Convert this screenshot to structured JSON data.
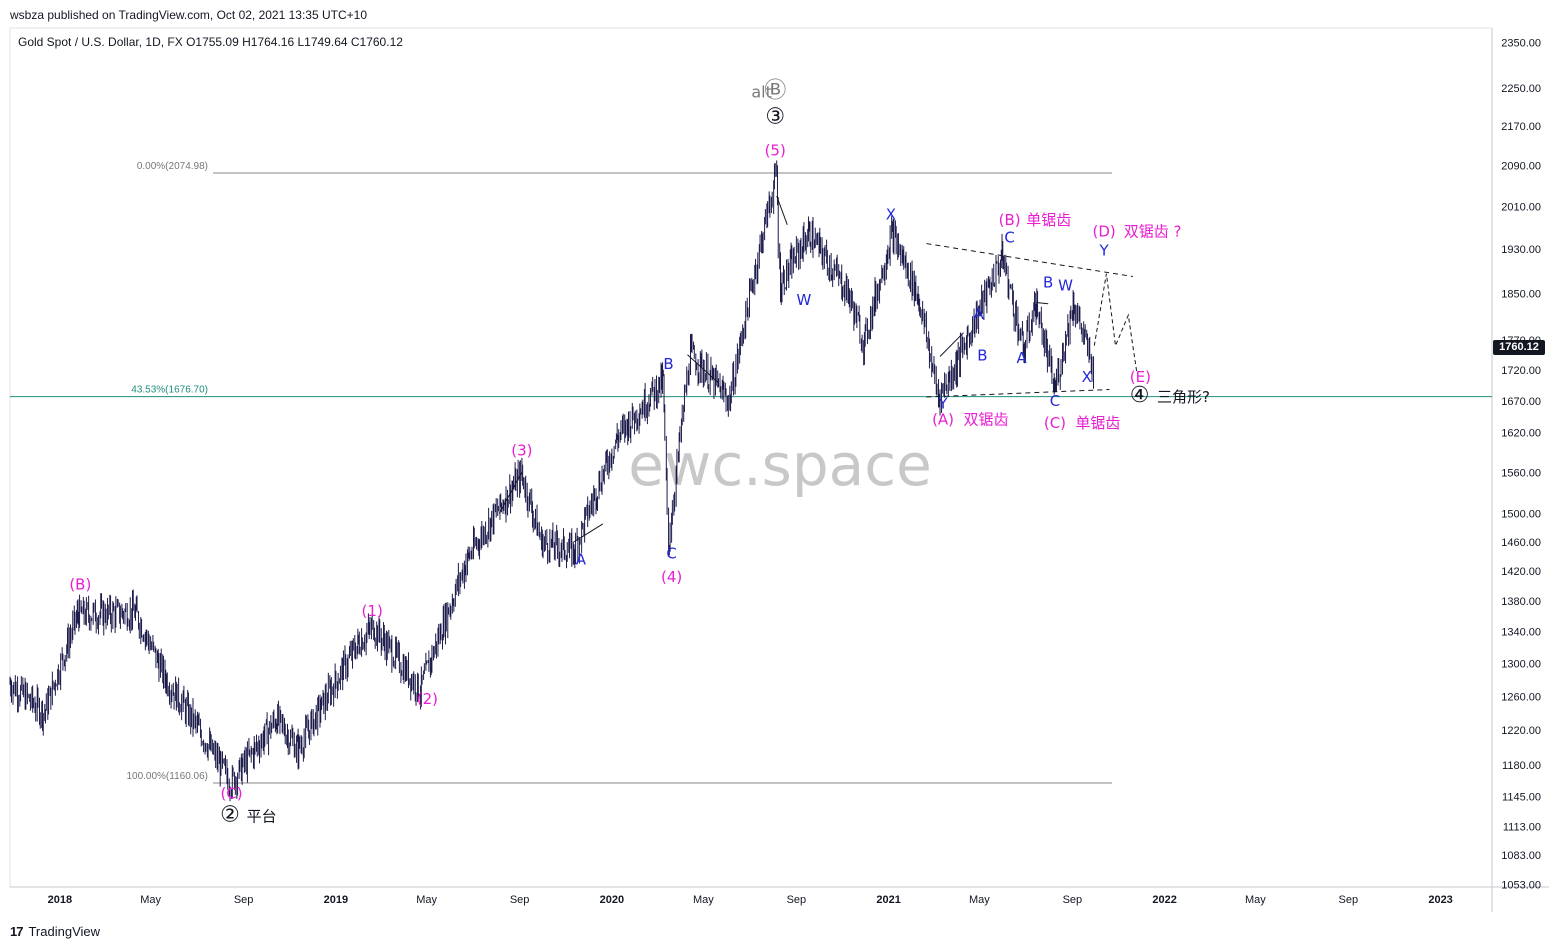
{
  "header": {
    "publisher": "wsbza published on TradingView.com, Oct 02, 2021 13:35 UTC+10",
    "symbol_line": "Gold Spot / U.S. Dollar, 1D, FX  O1755.09  H1764.16  L1749.64  C1760.12"
  },
  "footer": {
    "brand": "TradingView",
    "logo": "17"
  },
  "last_price": "1760.12",
  "watermark": "ewc.space",
  "colors": {
    "candles": "#1b1a4a",
    "magenta": "#e91ed2",
    "blue": "#2329d9",
    "teal": "#1f8f7c",
    "grey": "#7a7a7a",
    "fib": "#777777"
  },
  "chart_data": {
    "type": "candlestick",
    "title": "Gold Spot / U.S. Dollar, 1D, FX",
    "ohlc_last": {
      "open": 1755.09,
      "high": 1764.16,
      "low": 1749.64,
      "close": 1760.12
    },
    "y_axis": {
      "scale": "log",
      "ticks": [
        "2350.00",
        "2250.00",
        "2170.00",
        "2090.00",
        "2010.00",
        "1930.00",
        "1850.00",
        "1770.00",
        "1720.00",
        "1670.00",
        "1620.00",
        "1560.00",
        "1500.00",
        "1460.00",
        "1420.00",
        "1380.00",
        "1340.00",
        "1300.00",
        "1260.00",
        "1220.00",
        "1180.00",
        "1145.00",
        "1113.00",
        "1083.00",
        "1053.00"
      ],
      "ylim": [
        1053,
        2350
      ]
    },
    "x_axis": {
      "ticks": [
        "2018",
        "May",
        "Sep",
        "2019",
        "May",
        "Sep",
        "2020",
        "May",
        "Sep",
        "2021",
        "May",
        "Sep",
        "2022",
        "May",
        "Sep",
        "2023"
      ],
      "tick_dates": [
        "2018-01-01",
        "2018-05-01",
        "2018-09-01",
        "2019-01-01",
        "2019-05-01",
        "2019-09-01",
        "2020-01-01",
        "2020-05-01",
        "2020-09-01",
        "2021-01-01",
        "2021-05-01",
        "2021-09-01",
        "2022-01-01",
        "2022-05-01",
        "2022-09-01",
        "2023-01-01"
      ],
      "xlim": [
        "2017-10-27",
        "2023-03-10"
      ]
    },
    "price_path": [
      [
        "2017-10-27",
        1276
      ],
      [
        "2017-12-12",
        1240
      ],
      [
        "2018-01-25",
        1362
      ],
      [
        "2018-04-11",
        1365
      ],
      [
        "2018-05-21",
        1282
      ],
      [
        "2018-08-16",
        1160
      ],
      [
        "2018-10-15",
        1233
      ],
      [
        "2018-11-12",
        1198
      ],
      [
        "2019-01-31",
        1325
      ],
      [
        "2019-02-20",
        1346
      ],
      [
        "2019-04-23",
        1267
      ],
      [
        "2019-06-25",
        1438
      ],
      [
        "2019-09-04",
        1557
      ],
      [
        "2019-09-30",
        1460
      ],
      [
        "2019-11-12",
        1446
      ],
      [
        "2020-01-08",
        1611
      ],
      [
        "2020-03-09",
        1703
      ],
      [
        "2020-03-16",
        1451
      ],
      [
        "2020-04-14",
        1747
      ],
      [
        "2020-06-05",
        1670
      ],
      [
        "2020-08-06",
        2074
      ],
      [
        "2020-08-11",
        1863
      ],
      [
        "2020-09-18",
        1960
      ],
      [
        "2020-11-09",
        1850
      ],
      [
        "2020-11-30",
        1764
      ],
      [
        "2021-01-06",
        1959
      ],
      [
        "2021-02-10",
        1842
      ],
      [
        "2021-03-08",
        1676
      ],
      [
        "2021-04-01",
        1728
      ],
      [
        "2021-06-01",
        1916
      ],
      [
        "2021-06-29",
        1750
      ],
      [
        "2021-07-15",
        1834
      ],
      [
        "2021-08-09",
        1687
      ],
      [
        "2021-09-03",
        1834
      ],
      [
        "2021-09-29",
        1721
      ],
      [
        "2021-09-30",
        1760
      ]
    ],
    "fib_levels": [
      {
        "label": "0.00%(2074.98)",
        "value": 2074.98
      },
      {
        "label": "43.53%(1676.70)",
        "value": 1676.7
      },
      {
        "label": "100.00%(1160.06)",
        "value": 1160.06
      }
    ],
    "wave_labels": [
      {
        "text": "(B)",
        "date": "2018-01-28",
        "price": 1395,
        "color": "magenta"
      },
      {
        "text": "(C)",
        "date": "2018-08-16",
        "price": 1143,
        "color": "magenta"
      },
      {
        "text": "②",
        "date": "2018-08-14",
        "price": 1118,
        "color": "black"
      },
      {
        "text": "平台",
        "date": "2018-09-05",
        "price": 1118,
        "color": "black"
      },
      {
        "text": "(1)",
        "date": "2019-02-18",
        "price": 1360,
        "color": "magenta"
      },
      {
        "text": "(2)",
        "date": "2019-05-02",
        "price": 1251,
        "color": "magenta"
      },
      {
        "text": "(3)",
        "date": "2019-09-04",
        "price": 1585,
        "color": "magenta"
      },
      {
        "text": "A",
        "date": "2019-11-21",
        "price": 1429,
        "color": "blue"
      },
      {
        "text": "B",
        "date": "2020-03-16",
        "price": 1721,
        "color": "blue"
      },
      {
        "text": "C",
        "date": "2020-03-20",
        "price": 1437,
        "color": "blue"
      },
      {
        "text": "(4)",
        "date": "2020-03-20",
        "price": 1405,
        "color": "magenta"
      },
      {
        "text": "alt",
        "date": "2020-07-17",
        "price": 2230,
        "color": "grey"
      },
      {
        "text": "Ⓑ",
        "date": "2020-08-04",
        "price": 2230,
        "color": "grey"
      },
      {
        "text": "③",
        "date": "2020-08-04",
        "price": 2175,
        "color": "black"
      },
      {
        "text": "(5)",
        "date": "2020-08-04",
        "price": 2110,
        "color": "magenta"
      },
      {
        "text": "W",
        "date": "2020-09-11",
        "price": 1830,
        "color": "blue"
      },
      {
        "text": "X",
        "date": "2021-01-04",
        "price": 1985,
        "color": "blue"
      },
      {
        "text": "Y",
        "date": "2021-03-14",
        "price": 1658,
        "color": "blue"
      },
      {
        "text": "(A)",
        "date": "2021-03-14",
        "price": 1633,
        "color": "magenta"
      },
      {
        "text": "双锯齿",
        "date": "2021-04-10",
        "price": 1633,
        "color": "magenta"
      },
      {
        "text": "A",
        "date": "2021-04-30",
        "price": 1805,
        "color": "blue"
      },
      {
        "text": "B",
        "date": "2021-05-05",
        "price": 1735,
        "color": "blue"
      },
      {
        "text": "C",
        "date": "2021-06-10",
        "price": 1942,
        "color": "blue"
      },
      {
        "text": "(B)",
        "date": "2021-06-10",
        "price": 1975,
        "color": "magenta"
      },
      {
        "text": "单锯齿",
        "date": "2021-07-02",
        "price": 1975,
        "color": "magenta"
      },
      {
        "text": "A",
        "date": "2021-06-26",
        "price": 1731,
        "color": "blue"
      },
      {
        "text": "B",
        "date": "2021-07-31",
        "price": 1860,
        "color": "blue"
      },
      {
        "text": "C",
        "date": "2021-08-09",
        "price": 1662,
        "color": "blue"
      },
      {
        "text": "(C)",
        "date": "2021-08-09",
        "price": 1627,
        "color": "magenta"
      },
      {
        "text": "单锯齿",
        "date": "2021-09-05",
        "price": 1627,
        "color": "magenta"
      },
      {
        "text": "W",
        "date": "2021-08-23",
        "price": 1855,
        "color": "blue"
      },
      {
        "text": "X",
        "date": "2021-09-20",
        "price": 1700,
        "color": "blue"
      },
      {
        "text": "Y",
        "date": "2021-10-13",
        "price": 1918,
        "color": "blue"
      },
      {
        "text": "(D)",
        "date": "2021-10-13",
        "price": 1953,
        "color": "magenta"
      },
      {
        "text": "双锯齿 ?",
        "date": "2021-11-08",
        "price": 1953,
        "color": "magenta"
      },
      {
        "text": "(E)",
        "date": "2021-11-30",
        "price": 1700,
        "color": "magenta"
      },
      {
        "text": "④",
        "date": "2021-11-29",
        "price": 1668,
        "color": "black"
      },
      {
        "text": "三角形?",
        "date": "2021-12-22",
        "price": 1668,
        "color": "black"
      }
    ]
  }
}
